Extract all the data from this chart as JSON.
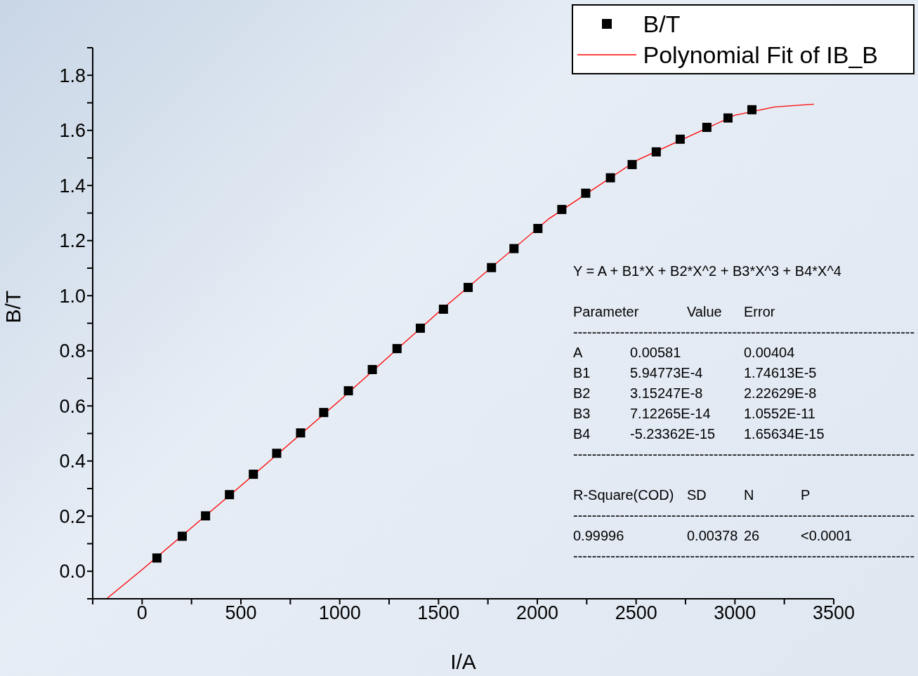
{
  "chart_data": {
    "type": "scatter",
    "xlabel": "I/A",
    "ylabel": "B/T",
    "legend": "top right",
    "xlim": [
      -250,
      3500
    ],
    "ylim": [
      -0.1,
      1.9
    ],
    "xticks": [
      {
        "value": -250,
        "label": null
      },
      0,
      {
        "value": 250,
        "label": null
      },
      500,
      {
        "value": 750,
        "label": null
      },
      1000,
      {
        "value": 1250,
        "label": null
      },
      1500,
      {
        "value": 1750,
        "label": null
      },
      2000,
      {
        "value": 2250,
        "label": null
      },
      2500,
      {
        "value": 2750,
        "label": null
      },
      3000,
      {
        "value": 3250,
        "label": null
      },
      3500
    ],
    "yticks": [
      {
        "value": -0.1,
        "label": null
      },
      {
        "value": 0,
        "label": "0.0"
      },
      {
        "value": 0.1,
        "label": null
      },
      0.2,
      {
        "value": 0.3,
        "label": null
      },
      0.4,
      {
        "value": 0.5,
        "label": null
      },
      0.6,
      {
        "value": 0.7,
        "label": null
      },
      0.8,
      {
        "value": 0.9,
        "label": null
      },
      {
        "value": 1,
        "label": "1.0"
      },
      {
        "value": 1.1,
        "label": null
      },
      1.2,
      {
        "value": 1.3,
        "label": null
      },
      1.4,
      {
        "value": 1.5,
        "label": null
      },
      1.6,
      {
        "value": 1.7,
        "label": null
      },
      1.8,
      {
        "value": 1.9,
        "label": null
      }
    ],
    "series": [
      {
        "name": "B/T",
        "color": "#000000",
        "marker": "square",
        "x": [
          75,
          203,
          321,
          442,
          563,
          681,
          802,
          919,
          1044,
          1165,
          1290,
          1408,
          1525,
          1650,
          1768,
          1882,
          2003,
          2124,
          2245,
          2370,
          2480,
          2602,
          2723,
          2858,
          2965,
          3086
        ],
        "values": [
          0.048,
          0.127,
          0.201,
          0.278,
          0.352,
          0.428,
          0.502,
          0.576,
          0.655,
          0.732,
          0.808,
          0.882,
          0.951,
          1.03,
          1.102,
          1.171,
          1.244,
          1.313,
          1.372,
          1.428,
          1.476,
          1.522,
          1.568,
          1.611,
          1.645,
          1.675
        ]
      },
      {
        "name": "Polynomial Fit of IB_B",
        "type": "line",
        "color": "#ff0000",
        "marker": "none",
        "x": [
          -180,
          0,
          500,
          1000,
          1500,
          2060,
          2500,
          3000,
          3200,
          3400
        ],
        "values": [
          -0.1,
          0.006,
          0.31,
          0.62,
          0.94,
          1.28,
          1.49,
          1.655,
          1.685,
          1.695
        ]
      }
    ],
    "annotations": [
      "Y = A + B1*X + B2*X^2 + B3*X^3 + B4*X^4",
      "Parameter\t\tValue\tError",
      "-------------------------------------------------------------------------",
      "A\t0.00581\t\t0.00404",
      "B1\t5.94773E-4\t\t1.74613E-5",
      "B2\t3.15247E-8\t\t2.22629E-8",
      "B3\t7.12265E-14\t\t1.0552E-11",
      "B4\t-5.23362E-15\t\t1.65634E-15",
      "-------------------------------------------------------------------------",
      "R-Square(COD)\t\tSD\tN\tP",
      "-------------------------------------------------------------------------",
      "0.99996\t\t0.00378\t26\t<0.0001",
      "-------------------------------------------------------------------------"
    ]
  }
}
